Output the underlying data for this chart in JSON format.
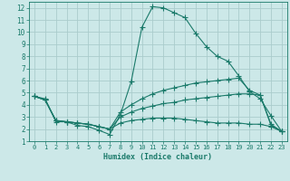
{
  "title": "",
  "xlabel": "Humidex (Indice chaleur)",
  "ylabel": "",
  "bg_color": "#cce8e8",
  "grid_color": "#aacccc",
  "line_color": "#1a7a6a",
  "xlim": [
    -0.5,
    23.5
  ],
  "ylim": [
    1,
    12.5
  ],
  "xticks": [
    0,
    1,
    2,
    3,
    4,
    5,
    6,
    7,
    8,
    9,
    10,
    11,
    12,
    13,
    14,
    15,
    16,
    17,
    18,
    19,
    20,
    21,
    22,
    23
  ],
  "yticks": [
    1,
    2,
    3,
    4,
    5,
    6,
    7,
    8,
    9,
    10,
    11,
    12
  ],
  "curve1_x": [
    0,
    1,
    2,
    3,
    4,
    5,
    6,
    7,
    8,
    9,
    10,
    11,
    12,
    13,
    14,
    15,
    16,
    17,
    18,
    19,
    20,
    21,
    22,
    23
  ],
  "curve1_y": [
    4.7,
    4.5,
    2.6,
    2.6,
    2.3,
    2.2,
    1.9,
    1.55,
    3.2,
    5.9,
    10.4,
    12.1,
    12.0,
    11.6,
    11.2,
    9.9,
    8.8,
    8.0,
    7.6,
    6.4,
    5.1,
    4.5,
    3.1,
    1.8
  ],
  "curve2_x": [
    0,
    1,
    2,
    3,
    4,
    5,
    6,
    7,
    8,
    9,
    10,
    11,
    12,
    13,
    14,
    15,
    16,
    17,
    18,
    19,
    20,
    21,
    22,
    23
  ],
  "curve2_y": [
    4.7,
    4.4,
    2.7,
    2.6,
    2.5,
    2.4,
    2.2,
    2.0,
    3.4,
    4.0,
    4.5,
    4.9,
    5.2,
    5.4,
    5.6,
    5.8,
    5.9,
    6.0,
    6.1,
    6.2,
    5.2,
    4.8,
    2.4,
    1.8
  ],
  "curve3_x": [
    0,
    1,
    2,
    3,
    4,
    5,
    6,
    7,
    8,
    9,
    10,
    11,
    12,
    13,
    14,
    15,
    16,
    17,
    18,
    19,
    20,
    21,
    22,
    23
  ],
  "curve3_y": [
    4.7,
    4.4,
    2.7,
    2.6,
    2.5,
    2.4,
    2.2,
    2.0,
    3.0,
    3.4,
    3.7,
    3.9,
    4.1,
    4.2,
    4.4,
    4.5,
    4.6,
    4.7,
    4.8,
    4.9,
    4.9,
    4.8,
    2.3,
    1.8
  ],
  "curve4_x": [
    0,
    1,
    2,
    3,
    4,
    5,
    6,
    7,
    8,
    9,
    10,
    11,
    12,
    13,
    14,
    15,
    16,
    17,
    18,
    19,
    20,
    21,
    22,
    23
  ],
  "curve4_y": [
    4.7,
    4.4,
    2.7,
    2.6,
    2.5,
    2.4,
    2.2,
    2.0,
    2.5,
    2.7,
    2.8,
    2.9,
    2.9,
    2.9,
    2.8,
    2.7,
    2.6,
    2.5,
    2.5,
    2.5,
    2.4,
    2.4,
    2.2,
    1.8
  ]
}
